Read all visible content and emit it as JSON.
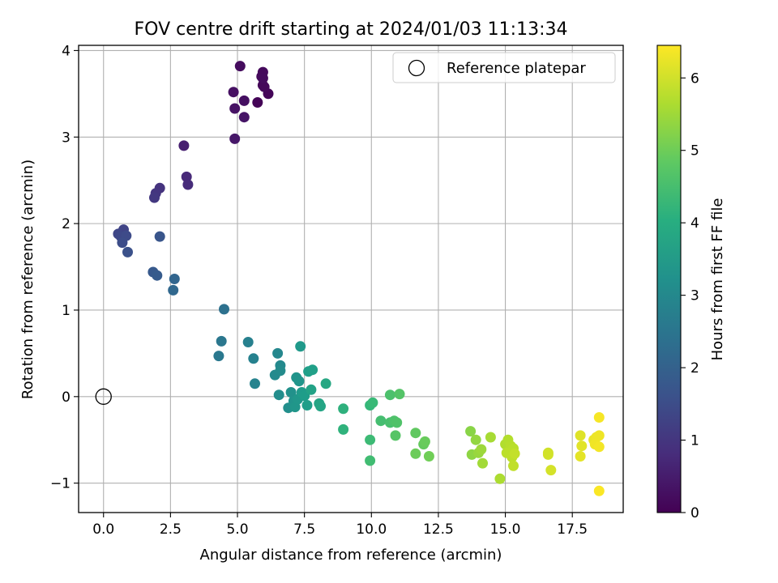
{
  "chart_data": {
    "type": "scatter",
    "title": "FOV centre drift starting at 2024/01/03 11:13:34",
    "xlabel": "Angular distance from reference (arcmin)",
    "ylabel": "Rotation from reference (arcmin)",
    "xlim": [
      -0.93,
      19.4
    ],
    "ylim": [
      -1.34,
      4.06
    ],
    "grid": true,
    "x_ticks": [
      0,
      2.5,
      5,
      7.5,
      10,
      12.5,
      15,
      17.5
    ],
    "x_tick_labels": [
      "0.0",
      "2.5",
      "5.0",
      "7.5",
      "10.0",
      "12.5",
      "15.0",
      "17.5"
    ],
    "y_ticks": [
      -1,
      0,
      1,
      2,
      3,
      4
    ],
    "y_tick_labels": [
      "−1",
      "0",
      "1",
      "2",
      "3",
      "4"
    ],
    "legend": {
      "placement": "top-right",
      "entries": [
        "Reference platepar"
      ]
    },
    "reference": {
      "x": 0,
      "y": 0
    },
    "colorbar": {
      "label": "Hours from first FF file",
      "colormap": "viridis",
      "range": [
        0,
        6.45
      ],
      "ticks": [
        0,
        1,
        2,
        3,
        4,
        5,
        6
      ],
      "tick_labels": [
        "0",
        "1",
        "2",
        "3",
        "4",
        "5",
        "6"
      ]
    },
    "points": [
      [
        5.75,
        3.4,
        0.05
      ],
      [
        6.15,
        3.5,
        0.08
      ],
      [
        5.95,
        3.6,
        0.1
      ],
      [
        6.0,
        3.58,
        0.12
      ],
      [
        5.9,
        3.7,
        0.14
      ],
      [
        5.95,
        3.75,
        0.16
      ],
      [
        5.95,
        3.68,
        0.18
      ],
      [
        5.1,
        3.82,
        0.2
      ],
      [
        5.25,
        3.42,
        0.25
      ],
      [
        4.85,
        3.52,
        0.28
      ],
      [
        4.9,
        3.33,
        0.32
      ],
      [
        5.25,
        3.23,
        0.36
      ],
      [
        4.9,
        2.98,
        0.4
      ],
      [
        3.0,
        2.9,
        0.55
      ],
      [
        3.1,
        2.54,
        0.75
      ],
      [
        3.15,
        2.45,
        0.8
      ],
      [
        2.1,
        2.41,
        0.95
      ],
      [
        1.95,
        2.35,
        1.0
      ],
      [
        1.9,
        2.3,
        1.05
      ],
      [
        0.75,
        1.93,
        1.3
      ],
      [
        0.55,
        1.88,
        1.35
      ],
      [
        0.65,
        1.85,
        1.4
      ],
      [
        0.85,
        1.86,
        1.45
      ],
      [
        0.7,
        1.78,
        1.5
      ],
      [
        0.9,
        1.67,
        1.6
      ],
      [
        2.1,
        1.85,
        1.7
      ],
      [
        1.85,
        1.44,
        1.8
      ],
      [
        2.0,
        1.4,
        1.85
      ],
      [
        2.65,
        1.36,
        2.1
      ],
      [
        2.6,
        1.23,
        2.15
      ],
      [
        4.5,
        1.01,
        2.4
      ],
      [
        4.4,
        0.64,
        2.55
      ],
      [
        4.3,
        0.47,
        2.6
      ],
      [
        5.4,
        0.63,
        2.8
      ],
      [
        5.6,
        0.44,
        2.85
      ],
      [
        5.65,
        0.15,
        2.9
      ],
      [
        6.5,
        0.5,
        3.0
      ],
      [
        6.6,
        0.36,
        3.05
      ],
      [
        6.4,
        0.25,
        3.08
      ],
      [
        6.6,
        0.3,
        3.1
      ],
      [
        6.55,
        0.02,
        3.15
      ],
      [
        6.9,
        -0.13,
        3.2
      ],
      [
        7.0,
        0.05,
        3.25
      ],
      [
        7.1,
        -0.05,
        3.3
      ],
      [
        7.2,
        0.22,
        3.33
      ],
      [
        7.3,
        0.18,
        3.36
      ],
      [
        7.15,
        -0.12,
        3.38
      ],
      [
        7.25,
        -0.03,
        3.4
      ],
      [
        7.35,
        0.58,
        3.45
      ],
      [
        7.4,
        0.05,
        3.5
      ],
      [
        7.5,
        0.01,
        3.55
      ],
      [
        7.6,
        -0.1,
        3.58
      ],
      [
        7.65,
        0.29,
        3.6
      ],
      [
        7.8,
        0.31,
        3.65
      ],
      [
        7.75,
        0.08,
        3.7
      ],
      [
        8.05,
        -0.08,
        3.75
      ],
      [
        8.1,
        -0.11,
        3.78
      ],
      [
        8.3,
        0.15,
        3.85
      ],
      [
        8.95,
        -0.14,
        4.1
      ],
      [
        8.95,
        -0.38,
        4.15
      ],
      [
        9.95,
        -0.1,
        4.3
      ],
      [
        10.05,
        -0.07,
        4.35
      ],
      [
        9.95,
        -0.5,
        4.4
      ],
      [
        9.95,
        -0.74,
        4.45
      ],
      [
        10.35,
        -0.28,
        4.5
      ],
      [
        10.7,
        -0.3,
        4.55
      ],
      [
        10.7,
        0.02,
        4.6
      ],
      [
        10.85,
        -0.28,
        4.62
      ],
      [
        10.95,
        -0.3,
        4.65
      ],
      [
        11.05,
        0.03,
        4.7
      ],
      [
        10.9,
        -0.45,
        4.72
      ],
      [
        11.65,
        -0.42,
        4.85
      ],
      [
        11.95,
        -0.55,
        4.9
      ],
      [
        12.0,
        -0.52,
        4.95
      ],
      [
        11.65,
        -0.66,
        5.0
      ],
      [
        12.15,
        -0.69,
        5.05
      ],
      [
        13.7,
        -0.4,
        5.3
      ],
      [
        13.75,
        -0.67,
        5.35
      ],
      [
        13.9,
        -0.5,
        5.4
      ],
      [
        14.0,
        -0.65,
        5.45
      ],
      [
        14.1,
        -0.61,
        5.5
      ],
      [
        14.15,
        -0.77,
        5.55
      ],
      [
        14.45,
        -0.47,
        5.6
      ],
      [
        14.8,
        -0.95,
        5.65
      ],
      [
        15.0,
        -0.55,
        5.7
      ],
      [
        15.1,
        -0.5,
        5.72
      ],
      [
        15.2,
        -0.57,
        5.75
      ],
      [
        15.3,
        -0.6,
        5.78
      ],
      [
        15.05,
        -0.65,
        5.8
      ],
      [
        15.25,
        -0.7,
        5.82
      ],
      [
        15.3,
        -0.8,
        5.85
      ],
      [
        15.35,
        -0.66,
        5.88
      ],
      [
        16.6,
        -0.65,
        6.0
      ],
      [
        16.6,
        -0.67,
        6.02
      ],
      [
        16.7,
        -0.85,
        6.05
      ],
      [
        17.8,
        -0.45,
        6.15
      ],
      [
        17.85,
        -0.57,
        6.18
      ],
      [
        17.8,
        -0.69,
        6.2
      ],
      [
        18.3,
        -0.5,
        6.25
      ],
      [
        18.4,
        -0.47,
        6.28
      ],
      [
        18.5,
        -0.45,
        6.3
      ],
      [
        18.35,
        -0.55,
        6.32
      ],
      [
        18.5,
        -0.58,
        6.35
      ],
      [
        18.5,
        -0.24,
        6.38
      ],
      [
        18.5,
        -1.09,
        6.42
      ]
    ]
  }
}
